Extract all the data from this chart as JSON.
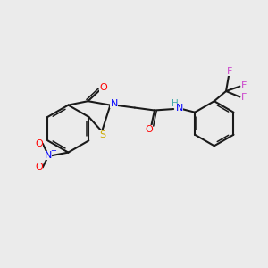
{
  "bg_color": "#ebebeb",
  "bond_color": "#1a1a1a",
  "colors": {
    "O": "#ff0000",
    "N": "#0000ff",
    "S": "#ccaa00",
    "F": "#cc44cc",
    "H": "#44aaaa",
    "NO2_O": "#ff0000",
    "NO2_N": "#0000ff"
  }
}
